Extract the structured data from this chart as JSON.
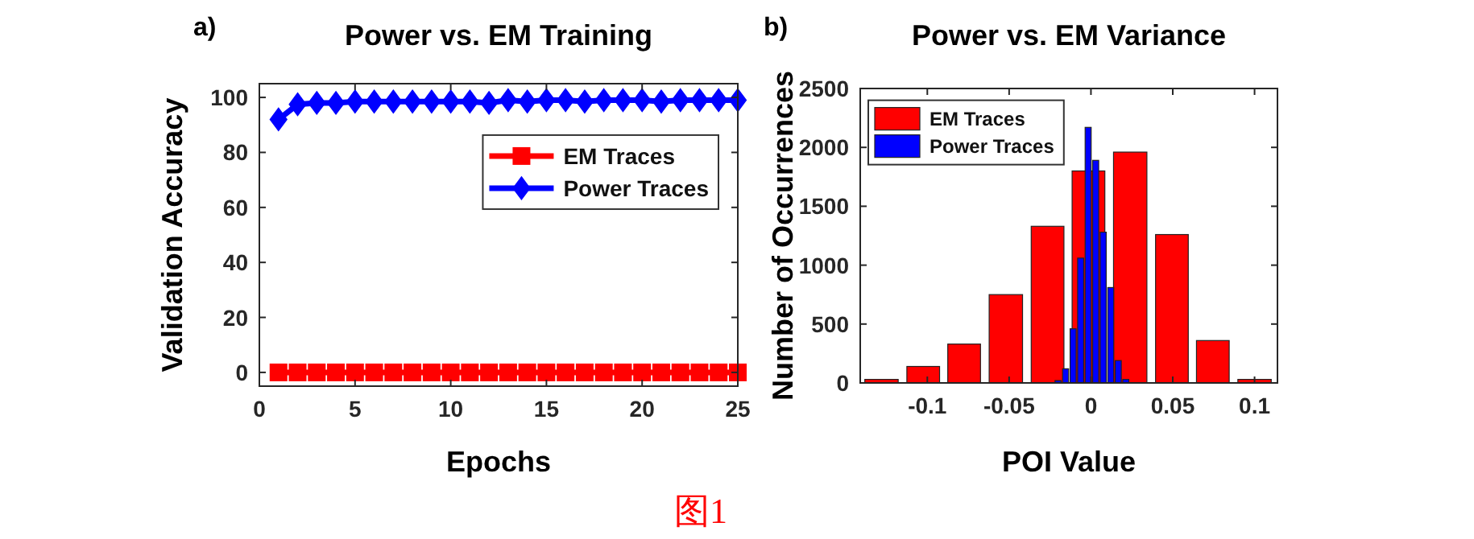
{
  "chart_data": [
    {
      "type": "line",
      "title": "Power vs. EM Training",
      "xlabel": "Epochs",
      "ylabel": "Validation Accuracy",
      "x": [
        1,
        2,
        3,
        4,
        5,
        6,
        7,
        8,
        9,
        10,
        11,
        12,
        13,
        14,
        15,
        16,
        17,
        18,
        19,
        20,
        21,
        22,
        23,
        24,
        25
      ],
      "series": [
        {
          "name": "EM Traces",
          "color": "#ff0000",
          "marker": "square",
          "values": [
            0,
            0,
            0,
            0,
            0,
            0,
            0,
            0,
            0,
            0,
            0,
            0,
            0,
            0,
            0,
            0,
            0,
            0,
            0,
            0,
            0,
            0,
            0,
            0,
            0
          ]
        },
        {
          "name": "Power Traces",
          "color": "#0000ff",
          "marker": "diamond",
          "values": [
            92,
            97.5,
            98,
            98,
            98.5,
            98.5,
            98.5,
            98.5,
            98.5,
            98.5,
            98.5,
            98,
            99,
            98.5,
            99,
            99,
            98.5,
            99,
            99,
            99,
            98.5,
            99,
            99,
            99,
            99
          ]
        }
      ],
      "xlim": [
        0,
        25
      ],
      "xticks": [
        0,
        5,
        10,
        15,
        20,
        25
      ],
      "ylim": [
        -5,
        105
      ],
      "yticks": [
        0,
        20,
        40,
        60,
        80,
        100
      ],
      "legend": "top right",
      "line_style": "solid",
      "annotations": [
        "a)",
        "图1"
      ]
    },
    {
      "type": "bar",
      "title": "Power vs. EM Variance",
      "xlabel": "POI Value",
      "ylabel": "Number of Occurrences",
      "series": [
        {
          "name": "EM Traces",
          "color": "#ff0000",
          "x": [
            -0.128,
            -0.1025,
            -0.0775,
            -0.052,
            -0.0265,
            -0.0015,
            0.024,
            0.0495,
            0.0745,
            0.1
          ],
          "values": [
            30,
            140,
            330,
            750,
            1330,
            1800,
            1960,
            1260,
            360,
            30
          ]
        },
        {
          "name": "Power Traces",
          "color": "#0000ff",
          "x": [
            -0.0201,
            -0.0155,
            -0.0109,
            -0.0063,
            -0.0017,
            0.0029,
            0.0075,
            0.0121,
            0.0167,
            0.0213
          ],
          "values": [
            20,
            120,
            460,
            1060,
            2170,
            1890,
            1280,
            810,
            190,
            30
          ]
        }
      ],
      "xlim": [
        -0.141,
        0.114
      ],
      "xticks": [
        -0.1,
        -0.05,
        0,
        0.05,
        0.1
      ],
      "ylim": [
        0,
        2500
      ],
      "yticks": [
        0,
        500,
        1000,
        1500,
        2000,
        2500
      ],
      "legend": "top left",
      "annotations": [
        "b)"
      ]
    }
  ]
}
